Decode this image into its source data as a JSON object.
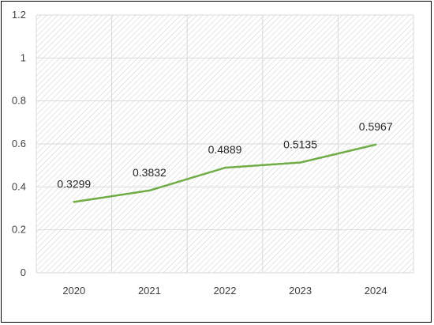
{
  "chart_data": {
    "type": "line",
    "x": [
      "2020",
      "2021",
      "2022",
      "2023",
      "2024"
    ],
    "series": [
      {
        "values": [
          0.3299,
          0.3832,
          0.4889,
          0.5135,
          0.5967
        ]
      }
    ],
    "data_labels": [
      "0.3299",
      "0.3832",
      "0.4889",
      "0.5135",
      "0.5967"
    ],
    "y_ticks": [
      "0",
      "0.2",
      "0.4",
      "0.6",
      "0.8",
      "1",
      "1.2"
    ],
    "ylim": [
      0,
      1.2
    ],
    "grid": true,
    "plot_background": "hatched",
    "line_color": "#70ad47",
    "grid_color": "#d9d9d9"
  }
}
